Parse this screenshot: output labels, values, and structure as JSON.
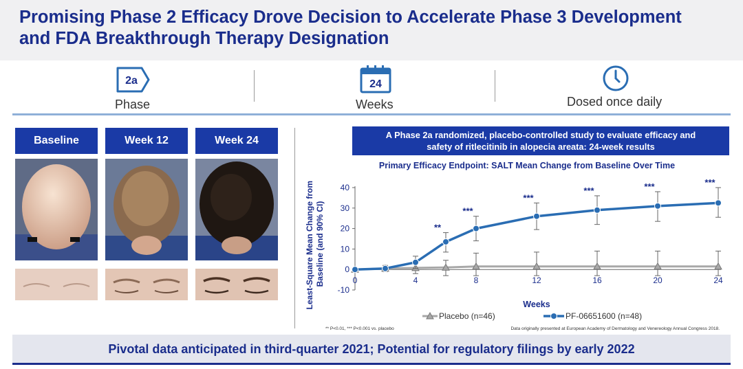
{
  "title": {
    "line1": "Promising Phase 2 Efficacy Drove Decision to Accelerate Phase 3 Development",
    "line2": "and FDA Breakthrough Therapy Designation"
  },
  "stats": {
    "phase": {
      "badge": "2a",
      "label": "Phase"
    },
    "weeks": {
      "badge": "24",
      "label": "Weeks"
    },
    "dosing": {
      "label": "Dosed once daily"
    }
  },
  "photos": {
    "headers": [
      "Baseline",
      "Week 12",
      "Week 24"
    ]
  },
  "study": {
    "line1": "A Phase 2a randomized, placebo-controlled study to evaluate efficacy and",
    "line2": "safety of ritlecitinib in alopecia areata: 24-week results"
  },
  "footnotes": {
    "significance": "** P<0.01, *** P<0.001 vs. placebo",
    "source": "Data originally presented at European Academy of Dermatology and Venereology Annual Congress 2018."
  },
  "footer": "Pivotal data anticipated in third-quarter 2021; Potential for regulatory filings by early 2022",
  "colors": {
    "navy": "#1a2d8c",
    "blue": "#1a3aa6",
    "series_blue": "#2a6db3",
    "placebo_gray": "#a8a8a8"
  },
  "chart_data": {
    "type": "line",
    "title": "Primary Efficacy Endpoint: SALT Mean Change from Baseline Over Time",
    "xlabel": "Weeks",
    "ylabel_line1": "Least-Square Mean Change from",
    "ylabel_line2": "Baseline (and 90% CI)",
    "xlim": [
      0,
      24
    ],
    "ylim": [
      -10,
      40
    ],
    "xticks": [
      0,
      4,
      8,
      12,
      16,
      20,
      24
    ],
    "yticks": [
      -10,
      0,
      10,
      20,
      30,
      40
    ],
    "series": [
      {
        "name": "Placebo (n=46)",
        "color": "#a8a8a8",
        "marker": "triangle",
        "x": [
          0,
          2,
          4,
          6,
          8,
          12,
          16,
          20,
          24
        ],
        "y": [
          0,
          0.5,
          0.8,
          1.0,
          1.5,
          1.5,
          1.5,
          1.5,
          1.5
        ],
        "ci_low": [
          0,
          -1,
          -2,
          -3,
          -3,
          -3,
          -3,
          -3,
          -3
        ],
        "ci_high": [
          0,
          2,
          3.5,
          4.5,
          8,
          8.5,
          9,
          9,
          9
        ]
      },
      {
        "name": "PF-06651600 (n=48)",
        "color": "#2a6db3",
        "marker": "circle",
        "x": [
          0,
          2,
          4,
          6,
          8,
          12,
          16,
          20,
          24
        ],
        "y": [
          0,
          0.5,
          3.5,
          13.5,
          20,
          26,
          29,
          31,
          32.5
        ],
        "ci_low": [
          0,
          -0.5,
          0.5,
          8.5,
          14,
          19.5,
          22,
          23.5,
          25.5
        ],
        "ci_high": [
          0,
          1.5,
          6.5,
          18,
          26,
          32.5,
          36,
          38,
          40
        ]
      }
    ],
    "annotations": [
      {
        "x": 6,
        "text": "**"
      },
      {
        "x": 8,
        "text": "***"
      },
      {
        "x": 12,
        "text": "***"
      },
      {
        "x": 16,
        "text": "***"
      },
      {
        "x": 20,
        "text": "***"
      },
      {
        "x": 24,
        "text": "***"
      }
    ]
  }
}
